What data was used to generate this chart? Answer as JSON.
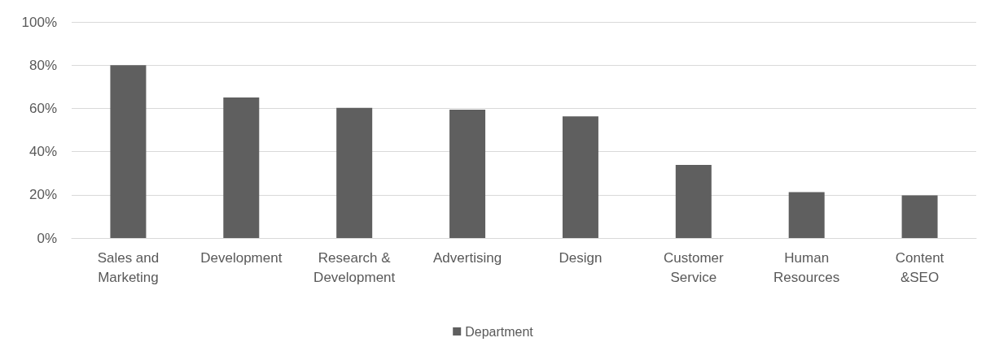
{
  "chart_data": {
    "type": "bar",
    "categories": [
      "Sales and\nMarketing",
      "Development",
      "Research &\nDevelopment",
      "Advertising",
      "Design",
      "Customer\nService",
      "Human\nResources",
      "Content\n&SEO"
    ],
    "series": [
      {
        "name": "Department",
        "color": "#5f5f5f",
        "values": [
          80,
          65,
          60.2,
          59.4,
          56.3,
          33.8,
          21.2,
          19.7
        ]
      }
    ],
    "ylim": [
      0,
      100
    ],
    "yticks": [
      {
        "value": 0,
        "label": "0%"
      },
      {
        "value": 20,
        "label": "20%"
      },
      {
        "value": 40,
        "label": "40%"
      },
      {
        "value": 60,
        "label": "60%"
      },
      {
        "value": 80,
        "label": "80%"
      },
      {
        "value": 100,
        "label": "100%"
      }
    ],
    "grid": "y",
    "legend": "bottom"
  }
}
